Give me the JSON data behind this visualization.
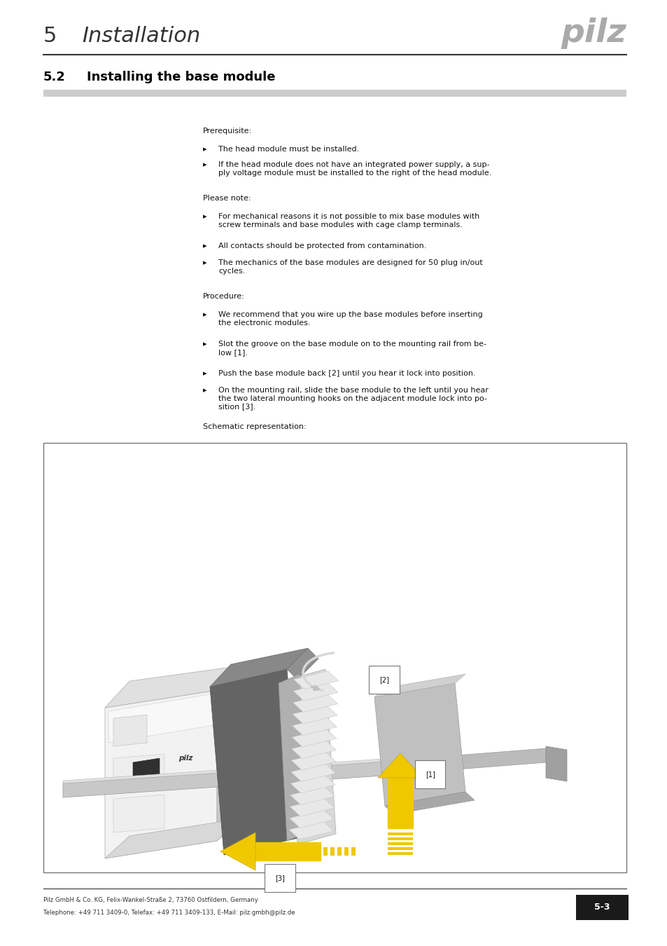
{
  "bg_color": "#ffffff",
  "page_width": 9.54,
  "page_height": 13.5,
  "header_chapter_num": "5",
  "header_chapter_title": "Installation",
  "pilz_logo_color": "#aaaaaa",
  "section_num": "5.2",
  "section_title": "Installing the base module",
  "footer_text1": "Pilz GmbH & Co. KG, Felix-Wankel-Straße 2, 73760 Ostfildern, Germany",
  "footer_text2": "Telephone: +49 711 3409-0, Telefax: +49 711 3409-133, E-Mail: pilz.gmbh@pilz.de",
  "page_num": "5-3",
  "page_num_box_color": "#1a1a1a",
  "page_num_text_color": "#ffffff",
  "yellow": "#f0c800",
  "light_gray": "#d8d8d8",
  "mid_gray": "#b0b0b0",
  "dark_gray": "#787878",
  "white_module": "#f0f0f0",
  "dark_module": "#606060"
}
